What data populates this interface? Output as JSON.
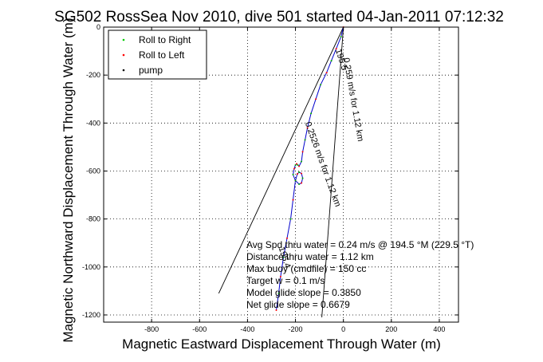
{
  "chart_data": {
    "type": "line",
    "title": "SG502 RossSea Nov 2010, dive 501 started 04-Jan-2011 07:12:32",
    "xlabel": "Magnetic Eastward Displacement Through Water (m)",
    "ylabel": "Magnetic Northward Displacement Through Water (m)",
    "xlim": [
      -1000,
      480
    ],
    "ylim": [
      -1230,
      0
    ],
    "xticks": [
      -800,
      -600,
      -400,
      -200,
      0,
      200,
      400
    ],
    "yticks": [
      0,
      -200,
      -400,
      -600,
      -800,
      -1000,
      -1200
    ],
    "grid": true,
    "legend": {
      "placement": "top-left",
      "entries": [
        {
          "label": "Roll to Right",
          "color": "#00cc00",
          "marker": "dot"
        },
        {
          "label": "Roll to Left",
          "color": "#ff0000",
          "marker": "dot"
        },
        {
          "label": "pump",
          "color": "#000000",
          "marker": "dot"
        }
      ]
    },
    "series": [
      {
        "color": "#0000cc",
        "x": [
          0,
          -10,
          -30,
          -50,
          -70,
          -95,
          -115,
          -135,
          -150,
          -160,
          -170,
          -175,
          -185,
          -190,
          -195,
          -200,
          -205,
          -210,
          -200,
          -185,
          -175,
          -170,
          -175,
          -185,
          -192,
          -200,
          -210,
          -220,
          -235,
          -250,
          -262,
          -270,
          -280
        ],
        "y": [
          0,
          -40,
          -90,
          -140,
          -190,
          -240,
          -300,
          -360,
          -420,
          -470,
          -520,
          -560,
          -580,
          -575,
          -570,
          -575,
          -590,
          -615,
          -640,
          -655,
          -650,
          -630,
          -610,
          -605,
          -612,
          -640,
          -720,
          -800,
          -880,
          -960,
          -1040,
          -1110,
          -1180
        ]
      }
    ],
    "reference_lines": [
      {
        "x": [
          0,
          -520
        ],
        "y": [
          0,
          -1110
        ],
        "color": "#000000"
      },
      {
        "x": [
          0,
          -90
        ],
        "y": [
          0,
          -1210
        ],
        "color": "#000000"
      }
    ],
    "rotated_annotations": [
      {
        "text": "195.5",
        "x": -33,
        "y": -95,
        "angle": 72
      },
      {
        "text": "0.259 m/s for 1.12 km",
        "x": 0,
        "y": -130,
        "angle": 80
      },
      {
        "text": "0.2526 m/s for 1.12 km",
        "x": -160,
        "y": -400,
        "angle": 70
      },
      {
        "text": "195.4",
        "x": -270,
        "y": -920,
        "angle": 72
      }
    ],
    "stats": [
      "Avg Spd thru water =  0.24 m/s @ 194.5   °M (229.5 °T)",
      "Distance thru water =  1.12 km",
      "Max buoy (cmdfile) = 150 cc",
      "Target w = 0.1 m/s",
      "Model glide slope = 0.3850",
      "Net glide slope = 0.6679"
    ]
  }
}
